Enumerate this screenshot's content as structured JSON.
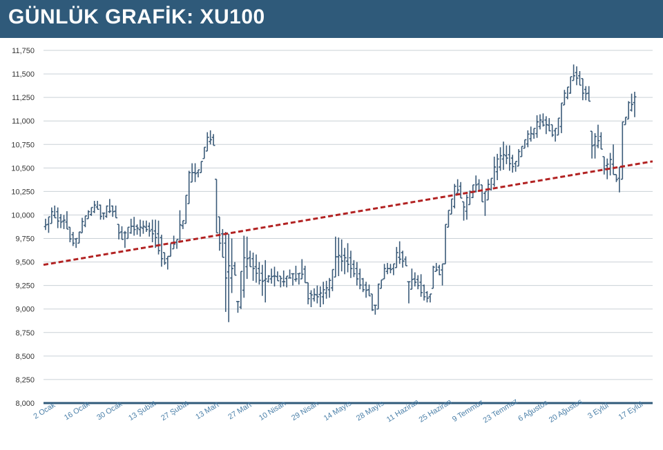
{
  "header": {
    "title": "GÜNLÜK GRAFİK: XU100"
  },
  "colors": {
    "header_bg": "#2f5a7a",
    "bars": "#3a5a78",
    "trend": "#b22222",
    "grid": "#c9d0d6",
    "axis": "#2f5a7a",
    "labels": "#4a7fa8"
  },
  "chart_data": {
    "type": "ohlc",
    "title": "GÜNLÜK GRAFİK: XU100",
    "ylim": [
      8000,
      11750
    ],
    "y_ticks": [
      "8,000",
      "8,250",
      "8,500",
      "8,750",
      "9,000",
      "9,250",
      "9,500",
      "9,750",
      "10,000",
      "10,250",
      "10,500",
      "10,750",
      "11,000",
      "11,250",
      "11,500",
      "11,750"
    ],
    "x_ticks": [
      "2 Ocak",
      "16 Ocak",
      "30 Ocak",
      "13 Şubat",
      "27 Şubat",
      "13 Mart",
      "27 Mart",
      "10 Nisan",
      "29 Nisan",
      "14 Mayıs",
      "28 Mayıs",
      "11 Haziran",
      "25 Haziran",
      "9 Temmuz",
      "23 Temmuz",
      "6 Ağustos",
      "20 Ağustos",
      "3 Eylül",
      "17 Eylül"
    ],
    "grid": true,
    "trendline": {
      "start": 9470,
      "end": 10570,
      "style": "dashed"
    },
    "bars_high": [
      9960,
      9980,
      10080,
      10100,
      10080,
      10010,
      10000,
      10040,
      9870,
      9820,
      9750,
      9820,
      9970,
      9990,
      10050,
      10080,
      10150,
      10150,
      10110,
      10020,
      10100,
      10170,
      10100,
      10100,
      9900,
      9880,
      9830,
      9870,
      9960,
      9980,
      9900,
      9950,
      9940,
      9940,
      9920,
      9950,
      9950,
      9940,
      9790,
      9600,
      9560,
      9700,
      9780,
      9740,
      10050,
      9940,
      10210,
      10470,
      10550,
      10550,
      10480,
      10570,
      10720,
      10880,
      10900,
      10860,
      10380,
      9980,
      9850,
      9820,
      9800,
      9750,
      9500,
      9080,
      9400,
      9780,
      9770,
      9620,
      9600,
      9580,
      9500,
      9470,
      9520,
      9360,
      9430,
      9450,
      9400,
      9350,
      9410,
      9350,
      9420,
      9380,
      9460,
      9380,
      9530,
      9460,
      9280,
      9200,
      9220,
      9250,
      9240,
      9290,
      9300,
      9330,
      9420,
      9770,
      9760,
      9740,
      9650,
      9700,
      9620,
      9520,
      9500,
      9430,
      9330,
      9290,
      9260,
      9160,
      9040,
      9270,
      9310,
      9480,
      9490,
      9480,
      9480,
      9660,
      9720,
      9620,
      9560,
      9290,
      9430,
      9390,
      9360,
      9370,
      9260,
      9190,
      9160,
      9460,
      9490,
      9470,
      9480,
      9900,
      10050,
      10170,
      10330,
      10380,
      10350,
      10140,
      10220,
      10260,
      10320,
      10420,
      10380,
      10320,
      10250,
      10380,
      10390,
      10620,
      10650,
      10720,
      10780,
      10740,
      10740,
      10640,
      10570,
      10700,
      10730,
      10800,
      10900,
      10940,
      10920,
      11060,
      11070,
      11080,
      11050,
      11030,
      10960,
      10920,
      11030,
      11190,
      11330,
      11360,
      11470,
      11600,
      11580,
      11530,
      11450,
      11370,
      11370,
      10890,
      10870,
      10960,
      10880,
      10620,
      10600,
      10660,
      10750,
      10430,
      10510,
      10990,
      11040,
      11210,
      11290,
      11310
    ],
    "bars_low": [
      9840,
      9810,
      9910,
      9970,
      9860,
      9860,
      9850,
      9850,
      9710,
      9670,
      9650,
      9700,
      9810,
      9870,
      9960,
      9990,
      10020,
      10060,
      9950,
      9950,
      9970,
      10020,
      9980,
      9970,
      9740,
      9740,
      9650,
      9750,
      9800,
      9780,
      9790,
      9770,
      9800,
      9820,
      9770,
      9710,
      9650,
      9580,
      9450,
      9470,
      9420,
      9560,
      9640,
      9640,
      9720,
      9850,
      9910,
      10120,
      10350,
      10350,
      10400,
      10450,
      10600,
      10680,
      10750,
      10740,
      9810,
      9620,
      9550,
      8970,
      8860,
      9170,
      9360,
      8960,
      9000,
      9120,
      9320,
      9450,
      9300,
      9280,
      9260,
      9140,
      9070,
      9280,
      9270,
      9240,
      9300,
      9230,
      9240,
      9230,
      9330,
      9250,
      9290,
      9260,
      9320,
      9280,
      9050,
      9020,
      9080,
      9060,
      9020,
      9050,
      9110,
      9120,
      9190,
      9340,
      9350,
      9400,
      9370,
      9390,
      9330,
      9340,
      9250,
      9210,
      9180,
      9120,
      9140,
      8980,
      8940,
      9000,
      9220,
      9320,
      9370,
      9380,
      9360,
      9440,
      9480,
      9440,
      9460,
      9060,
      9210,
      9240,
      9210,
      9130,
      9090,
      9070,
      9070,
      9220,
      9400,
      9360,
      9250,
      9480,
      9870,
      10010,
      10070,
      10230,
      10180,
      9940,
      9950,
      10110,
      10180,
      10240,
      10260,
      10140,
      9990,
      10160,
      10260,
      10300,
      10370,
      10470,
      10480,
      10540,
      10470,
      10450,
      10460,
      10520,
      10620,
      10710,
      10720,
      10780,
      10810,
      10820,
      10910,
      10940,
      10860,
      10890,
      10830,
      10780,
      10850,
      10870,
      11170,
      11230,
      11290,
      11430,
      11380,
      11380,
      11220,
      11220,
      11210,
      10600,
      10600,
      10710,
      10700,
      10430,
      10380,
      10420,
      10430,
      10350,
      10240,
      10380,
      10960,
      11020,
      11100,
      11040
    ]
  }
}
